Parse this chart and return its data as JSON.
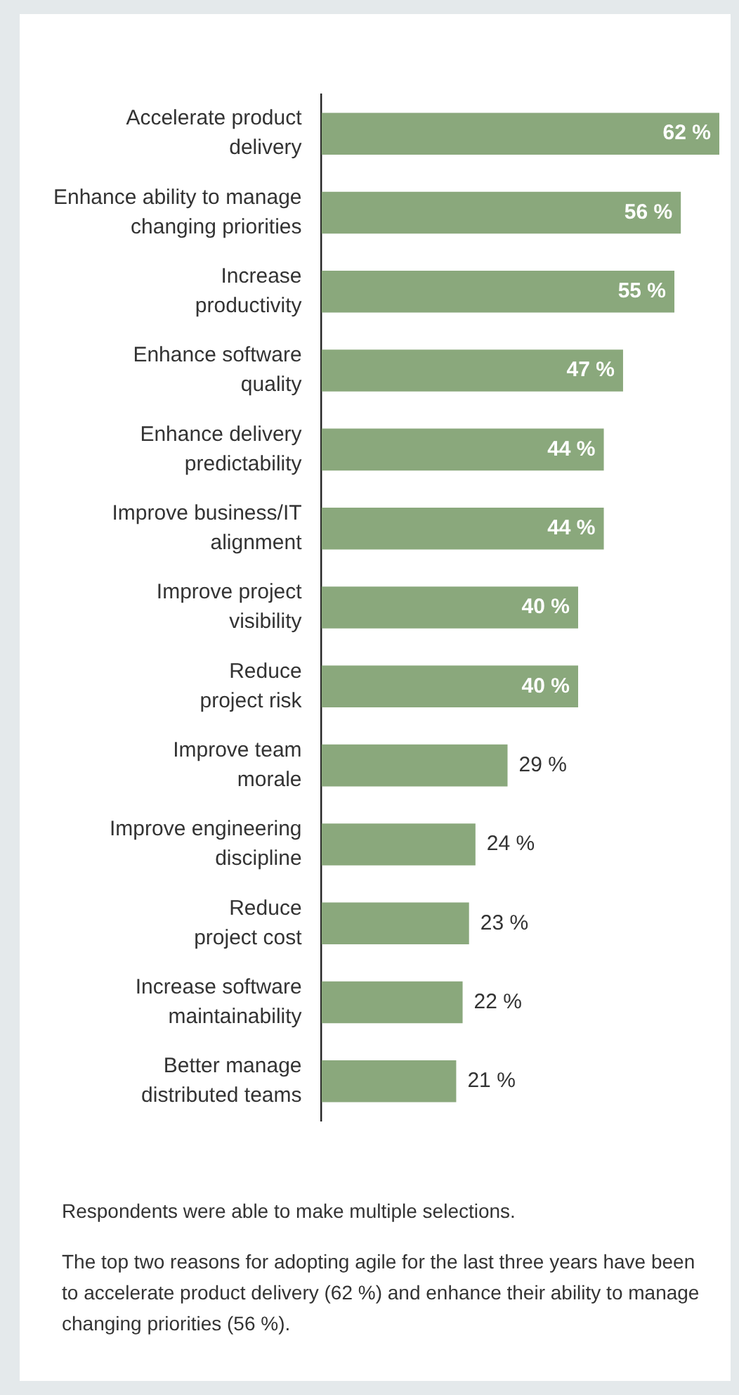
{
  "chart_data": {
    "type": "bar",
    "orientation": "horizontal",
    "categories": [
      "Accelerate product\ndelivery",
      "Enhance ability to manage\nchanging priorities",
      "Increase\nproductivity",
      "Enhance software\nquality",
      "Enhance delivery\npredictability",
      "Improve business/IT\nalignment",
      "Improve project\nvisibility",
      "Reduce\nproject risk",
      "Improve team\nmorale",
      "Improve engineering\ndiscipline",
      "Reduce\nproject cost",
      "Increase software\nmaintainability",
      "Better manage\ndistributed teams"
    ],
    "values": [
      62,
      56,
      55,
      47,
      44,
      44,
      40,
      40,
      29,
      24,
      23,
      22,
      21
    ],
    "value_labels": [
      "62 %",
      "56 %",
      "55 %",
      "47 %",
      "44 %",
      "44 %",
      "40 %",
      "40 %",
      "29 %",
      "24 %",
      "23 %",
      "22 %",
      "21 %"
    ],
    "color": "#8aa87c",
    "xlim": [
      0,
      62
    ],
    "tick_labels": "y",
    "legend": false,
    "annotations": [
      "Respondents were able to make multiple selections.",
      "The top two reasons for adopting agile for the last three years have been to accelerate product delivery (62 %) and enhance their ability to manage changing priorities (56 %)."
    ]
  }
}
